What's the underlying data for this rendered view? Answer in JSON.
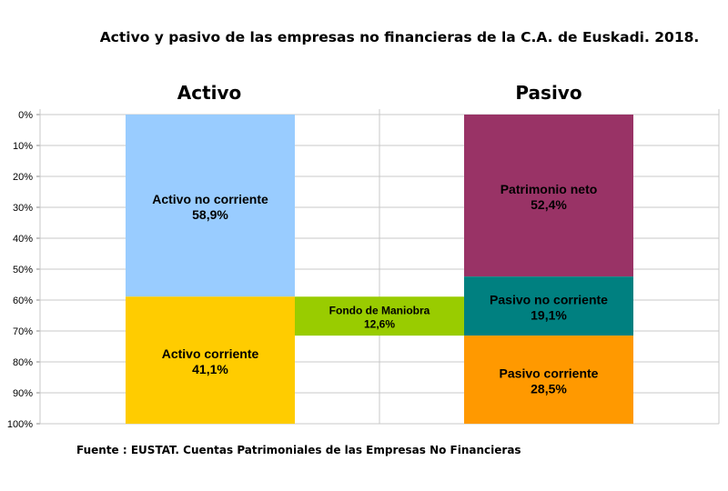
{
  "chart_data": {
    "type": "bar",
    "title": "Activo y pasivo de las empresas no financieras de la C.A. de Euskadi. 2018.",
    "y_axis_inverted": true,
    "ylim": [
      0,
      100
    ],
    "y_ticks": [
      "0%",
      "10%",
      "20%",
      "30%",
      "40%",
      "50%",
      "60%",
      "70%",
      "80%",
      "90%",
      "100%"
    ],
    "columns": [
      {
        "header": "Activo",
        "segments": [
          {
            "label": "Activo no corriente",
            "value_text": "58,9%",
            "start": 0,
            "value": 58.9,
            "color": "#99ccff"
          },
          {
            "label": "Activo corriente",
            "value_text": "41,1%",
            "start": 58.9,
            "value": 41.1,
            "color": "#ffcc00"
          }
        ]
      },
      {
        "header": "",
        "segments": [
          {
            "label": "Fondo de Maniobra",
            "value_text": "12,6%",
            "start": 58.9,
            "value": 12.6,
            "color": "#99cc00"
          }
        ]
      },
      {
        "header": "Pasivo",
        "segments": [
          {
            "label": "Patrimonio neto",
            "value_text": "52,4%",
            "start": 0,
            "value": 52.4,
            "color": "#993366"
          },
          {
            "label": "Pasivo no corriente",
            "value_text": "19,1%",
            "start": 52.4,
            "value": 19.1,
            "color": "#008080"
          },
          {
            "label": "Pasivo corriente",
            "value_text": "28,5%",
            "start": 71.5,
            "value": 28.5,
            "color": "#ff9900"
          }
        ]
      }
    ],
    "grid": true
  },
  "source_note": "Fuente : EUSTAT. Cuentas Patrimoniales de las Empresas No Financieras"
}
